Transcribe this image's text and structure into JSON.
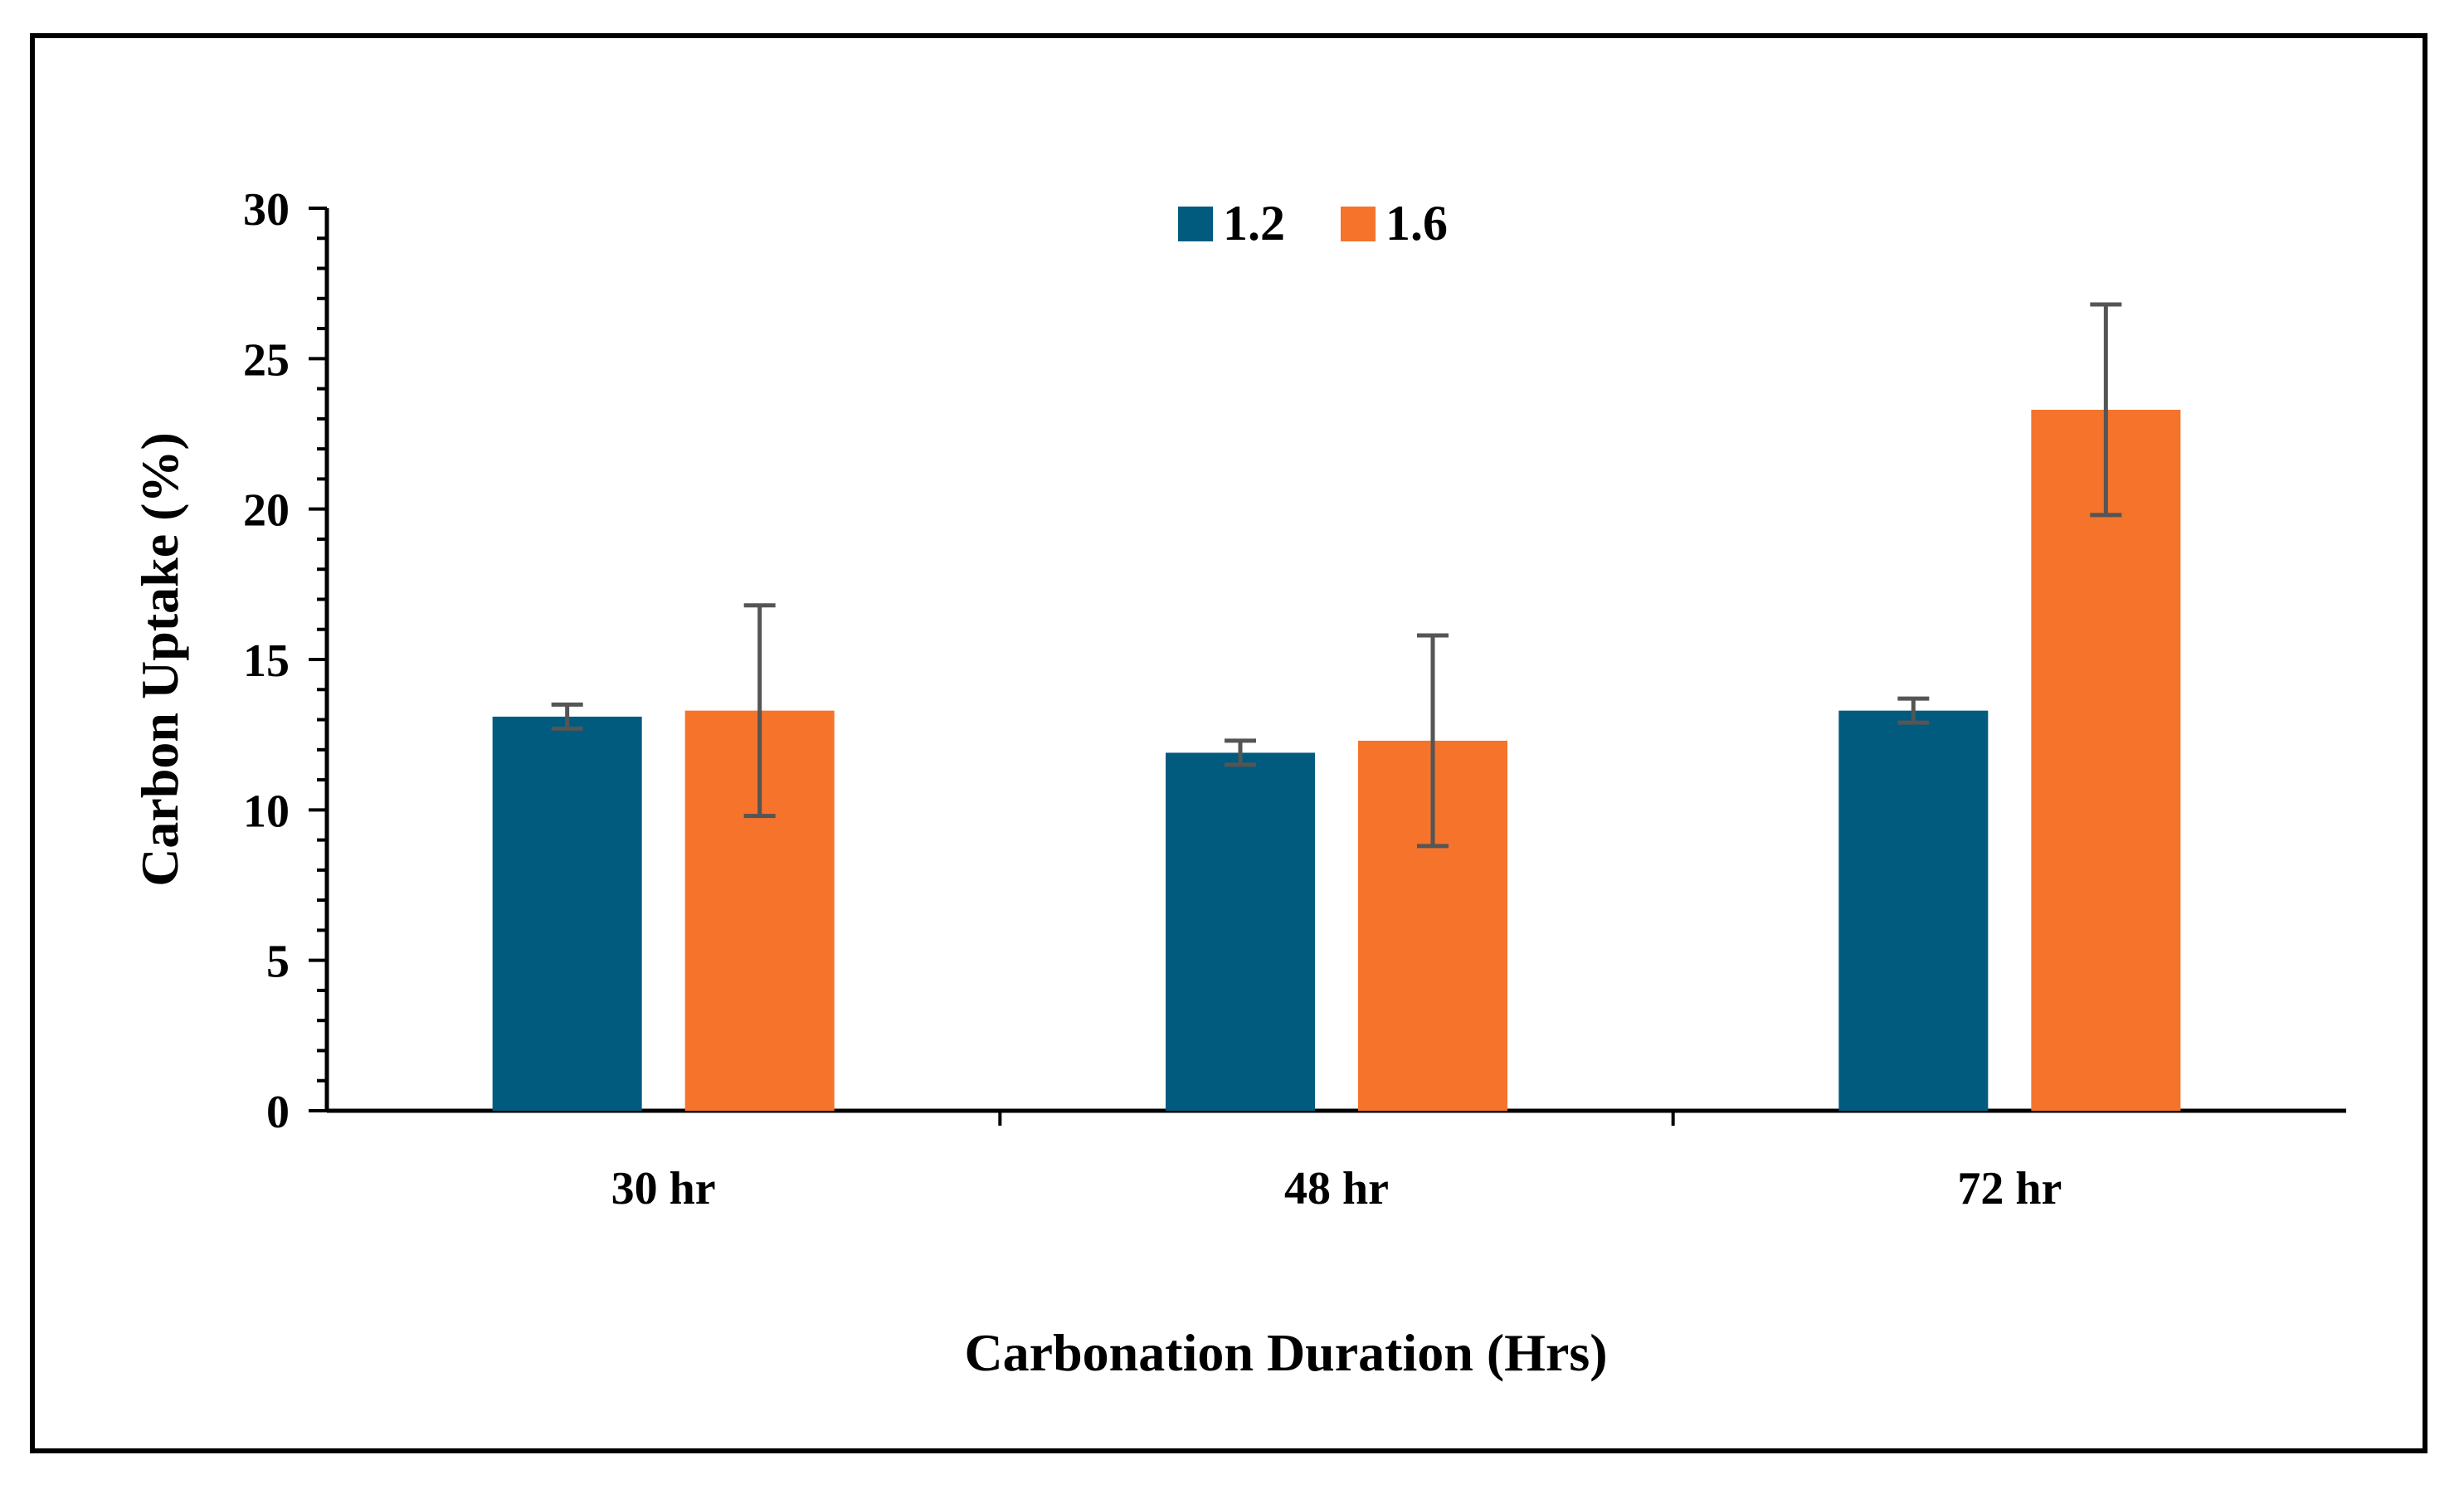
{
  "chart_data": {
    "type": "bar",
    "title": "",
    "xlabel": "Carbonation Duration (Hrs)",
    "ylabel": "Carbon Uptake (%)",
    "categories": [
      "30 hr",
      "48 hr",
      "72 hr"
    ],
    "ylim": [
      0,
      30
    ],
    "yticks": [
      0,
      5,
      10,
      15,
      20,
      25,
      30
    ],
    "legend_position": "top-center",
    "grid": false,
    "series": [
      {
        "name": "1.2",
        "color": "#005b7f",
        "values": [
          13.1,
          11.9,
          13.3
        ],
        "errors": [
          0.4,
          0.4,
          0.4
        ]
      },
      {
        "name": "1.6",
        "color": "#f5732a",
        "values": [
          13.3,
          12.3,
          23.3
        ],
        "errors": [
          3.5,
          3.5,
          3.5
        ]
      }
    ]
  }
}
